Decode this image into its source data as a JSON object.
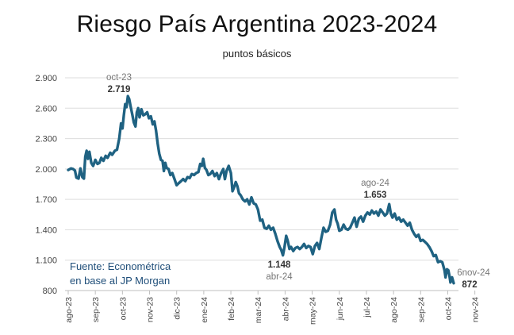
{
  "title": "Riesgo País Argentina 2023-2024",
  "subtitle": "puntos básicos",
  "source": {
    "line1": "Fuente: Econométrica",
    "line2": "en base al JP Morgan"
  },
  "colors": {
    "line": "#1f6282",
    "source_text": "#1f4e79",
    "annotation_date": "#777777",
    "annotation_value": "#333333"
  },
  "chart_data": {
    "type": "line",
    "title": "Riesgo País Argentina 2023-2024",
    "subtitle": "puntos básicos",
    "xlabel": "",
    "ylabel": "",
    "ylim": [
      800,
      2900
    ],
    "yticks": [
      800,
      1100,
      1400,
      1700,
      2000,
      2300,
      2600,
      2900
    ],
    "ytick_labels": [
      "800",
      "1.100",
      "1.400",
      "1.700",
      "2.000",
      "2.300",
      "2.600",
      "2.900"
    ],
    "xticks": [
      "ago-23",
      "sep-23",
      "oct-23",
      "nov-23",
      "dic-23",
      "ene-24",
      "feb-24",
      "mar-24",
      "abr-24",
      "may-24",
      "jun-24",
      "jul-24",
      "ago-24",
      "sep-24",
      "oct-24",
      "nov-24"
    ],
    "grid": "horizontal",
    "legend": "none",
    "x_unit": "months since ago-23",
    "series": [
      {
        "values": [
          [
            0.0,
            1990
          ],
          [
            0.1,
            2005
          ],
          [
            0.18,
            2000
          ],
          [
            0.25,
            1985
          ],
          [
            0.3,
            1915
          ],
          [
            0.38,
            1905
          ],
          [
            0.45,
            2005
          ],
          [
            0.52,
            1920
          ],
          [
            0.58,
            1905
          ],
          [
            0.63,
            2120
          ],
          [
            0.68,
            2180
          ],
          [
            0.73,
            2100
          ],
          [
            0.78,
            2170
          ],
          [
            0.85,
            2060
          ],
          [
            0.92,
            2030
          ],
          [
            1.0,
            2090
          ],
          [
            1.08,
            2050
          ],
          [
            1.15,
            2060
          ],
          [
            1.22,
            2110
          ],
          [
            1.3,
            2080
          ],
          [
            1.38,
            2130
          ],
          [
            1.45,
            2110
          ],
          [
            1.55,
            2160
          ],
          [
            1.62,
            2140
          ],
          [
            1.72,
            2180
          ],
          [
            1.8,
            2190
          ],
          [
            1.88,
            2300
          ],
          [
            1.95,
            2450
          ],
          [
            2.0,
            2400
          ],
          [
            2.05,
            2530
          ],
          [
            2.1,
            2640
          ],
          [
            2.15,
            2610
          ],
          [
            2.2,
            2719
          ],
          [
            2.25,
            2690
          ],
          [
            2.3,
            2620
          ],
          [
            2.36,
            2540
          ],
          [
            2.42,
            2460
          ],
          [
            2.48,
            2420
          ],
          [
            2.53,
            2560
          ],
          [
            2.58,
            2600
          ],
          [
            2.63,
            2510
          ],
          [
            2.7,
            2590
          ],
          [
            2.77,
            2530
          ],
          [
            2.84,
            2540
          ],
          [
            2.91,
            2560
          ],
          [
            2.98,
            2500
          ],
          [
            3.05,
            2520
          ],
          [
            3.12,
            2440
          ],
          [
            3.18,
            2470
          ],
          [
            3.24,
            2380
          ],
          [
            3.3,
            2250
          ],
          [
            3.36,
            2150
          ],
          [
            3.42,
            2090
          ],
          [
            3.48,
            2080
          ],
          [
            3.53,
            1980
          ],
          [
            3.58,
            2060
          ],
          [
            3.63,
            2010
          ],
          [
            3.7,
            2000
          ],
          [
            3.77,
            1940
          ],
          [
            3.84,
            1960
          ],
          [
            3.92,
            1900
          ],
          [
            4.0,
            1840
          ],
          [
            4.08,
            1860
          ],
          [
            4.16,
            1880
          ],
          [
            4.24,
            1900
          ],
          [
            4.32,
            1880
          ],
          [
            4.4,
            1920
          ],
          [
            4.48,
            1910
          ],
          [
            4.56,
            1950
          ],
          [
            4.64,
            1940
          ],
          [
            4.72,
            1960
          ],
          [
            4.8,
            1970
          ],
          [
            4.87,
            2050
          ],
          [
            4.93,
            2030
          ],
          [
            4.98,
            2100
          ],
          [
            5.04,
            2010
          ],
          [
            5.1,
            1990
          ],
          [
            5.17,
            1940
          ],
          [
            5.24,
            1950
          ],
          [
            5.32,
            1980
          ],
          [
            5.4,
            1930
          ],
          [
            5.48,
            1960
          ],
          [
            5.56,
            1900
          ],
          [
            5.64,
            1960
          ],
          [
            5.72,
            2000
          ],
          [
            5.78,
            1900
          ],
          [
            5.84,
            1980
          ],
          [
            5.92,
            2030
          ],
          [
            6.0,
            1960
          ],
          [
            6.06,
            1780
          ],
          [
            6.12,
            1820
          ],
          [
            6.18,
            1870
          ],
          [
            6.24,
            1830
          ],
          [
            6.3,
            1760
          ],
          [
            6.36,
            1740
          ],
          [
            6.44,
            1700
          ],
          [
            6.52,
            1680
          ],
          [
            6.6,
            1700
          ],
          [
            6.68,
            1650
          ],
          [
            6.76,
            1720
          ],
          [
            6.84,
            1660
          ],
          [
            6.92,
            1650
          ],
          [
            7.0,
            1600
          ],
          [
            7.08,
            1490
          ],
          [
            7.16,
            1500
          ],
          [
            7.24,
            1420
          ],
          [
            7.32,
            1410
          ],
          [
            7.4,
            1440
          ],
          [
            7.48,
            1400
          ],
          [
            7.56,
            1420
          ],
          [
            7.64,
            1360
          ],
          [
            7.72,
            1290
          ],
          [
            7.8,
            1230
          ],
          [
            7.86,
            1200
          ],
          [
            7.92,
            1148
          ],
          [
            7.98,
            1230
          ],
          [
            8.04,
            1340
          ],
          [
            8.1,
            1290
          ],
          [
            8.16,
            1210
          ],
          [
            8.22,
            1230
          ],
          [
            8.3,
            1190
          ],
          [
            8.38,
            1220
          ],
          [
            8.46,
            1230
          ],
          [
            8.54,
            1210
          ],
          [
            8.62,
            1230
          ],
          [
            8.7,
            1260
          ],
          [
            8.78,
            1220
          ],
          [
            8.86,
            1240
          ],
          [
            8.94,
            1230
          ],
          [
            9.02,
            1160
          ],
          [
            9.1,
            1240
          ],
          [
            9.18,
            1270
          ],
          [
            9.26,
            1210
          ],
          [
            9.34,
            1320
          ],
          [
            9.42,
            1420
          ],
          [
            9.5,
            1380
          ],
          [
            9.58,
            1390
          ],
          [
            9.66,
            1450
          ],
          [
            9.74,
            1570
          ],
          [
            9.82,
            1600
          ],
          [
            9.88,
            1500
          ],
          [
            9.94,
            1460
          ],
          [
            10.0,
            1390
          ],
          [
            10.08,
            1400
          ],
          [
            10.16,
            1450
          ],
          [
            10.24,
            1410
          ],
          [
            10.32,
            1400
          ],
          [
            10.4,
            1420
          ],
          [
            10.48,
            1470
          ],
          [
            10.56,
            1520
          ],
          [
            10.64,
            1430
          ],
          [
            10.72,
            1510
          ],
          [
            10.8,
            1530
          ],
          [
            10.88,
            1480
          ],
          [
            10.96,
            1540
          ],
          [
            11.04,
            1570
          ],
          [
            11.12,
            1550
          ],
          [
            11.2,
            1590
          ],
          [
            11.28,
            1560
          ],
          [
            11.36,
            1580
          ],
          [
            11.44,
            1540
          ],
          [
            11.52,
            1600
          ],
          [
            11.6,
            1570
          ],
          [
            11.68,
            1540
          ],
          [
            11.76,
            1560
          ],
          [
            11.84,
            1653
          ],
          [
            11.9,
            1560
          ],
          [
            11.96,
            1520
          ],
          [
            12.04,
            1560
          ],
          [
            12.12,
            1500
          ],
          [
            12.2,
            1520
          ],
          [
            12.28,
            1480
          ],
          [
            12.36,
            1500
          ],
          [
            12.44,
            1470
          ],
          [
            12.52,
            1440
          ],
          [
            12.6,
            1470
          ],
          [
            12.68,
            1400
          ],
          [
            12.76,
            1360
          ],
          [
            12.84,
            1330
          ],
          [
            12.92,
            1350
          ],
          [
            13.0,
            1290
          ],
          [
            13.08,
            1300
          ],
          [
            13.16,
            1280
          ],
          [
            13.24,
            1260
          ],
          [
            13.32,
            1230
          ],
          [
            13.4,
            1190
          ],
          [
            13.48,
            1140
          ],
          [
            13.56,
            1150
          ],
          [
            13.64,
            1080
          ],
          [
            13.72,
            1090
          ],
          [
            13.8,
            1080
          ],
          [
            13.88,
            1000
          ],
          [
            13.92,
            930
          ],
          [
            13.97,
            1010
          ],
          [
            14.02,
            1000
          ],
          [
            14.06,
            950
          ],
          [
            14.1,
            880
          ],
          [
            14.16,
            930
          ],
          [
            14.22,
            872
          ]
        ]
      }
    ],
    "annotations": [
      {
        "date": "oct-23",
        "value": "2.719"
      },
      {
        "date": "abr-24",
        "value": "1.148"
      },
      {
        "date": "ago-24",
        "value": "1.653"
      },
      {
        "date": "6nov-24",
        "value": "872"
      }
    ]
  }
}
